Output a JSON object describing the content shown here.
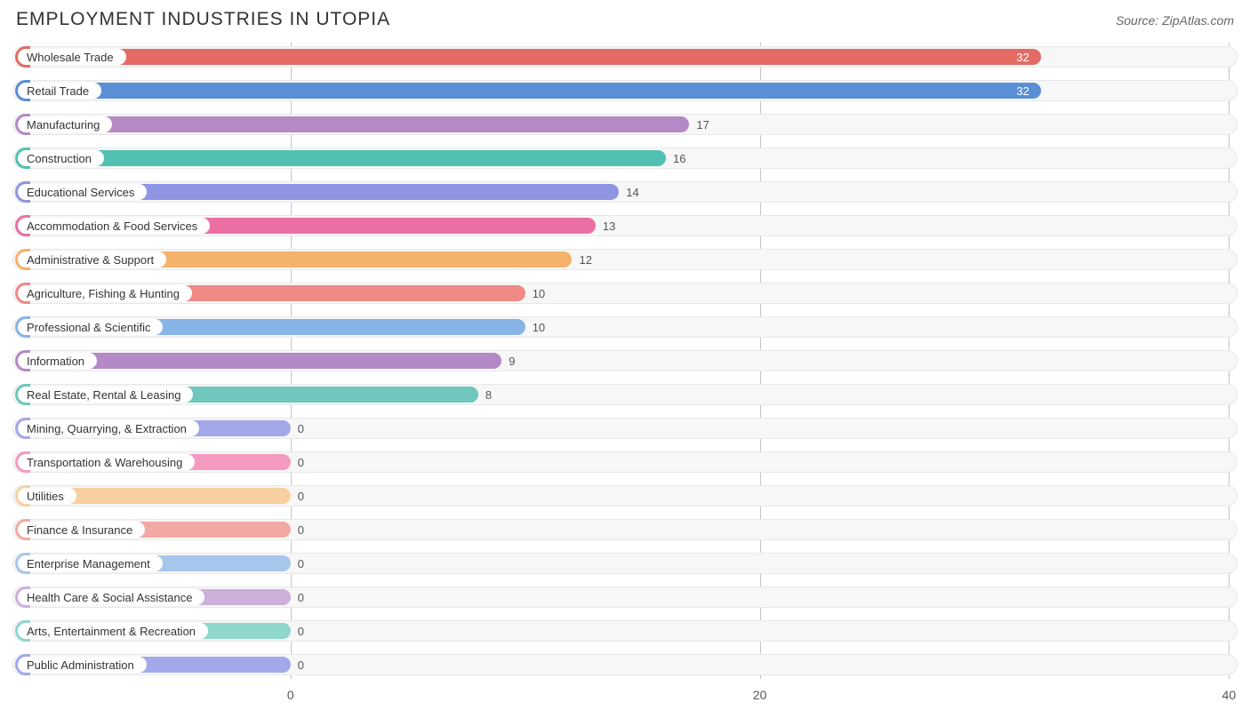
{
  "header": {
    "title": "EMPLOYMENT INDUSTRIES IN UTOPIA",
    "source": "Source: ZipAtlas.com"
  },
  "chart": {
    "type": "bar-horizontal",
    "background_color": "#ffffff",
    "track_color": "#f7f7f7",
    "track_border_color": "#e8e8e8",
    "grid_color": "#c4c4c4",
    "label_fontsize": 13,
    "title_fontsize": 21,
    "value_fontsize": 13,
    "bar_origin_pct": 22.7,
    "x_axis": {
      "ticks": [
        {
          "value": 0,
          "pos_pct": 22.7
        },
        {
          "value": 20,
          "pos_pct": 61.0
        },
        {
          "value": 40,
          "pos_pct": 99.3
        }
      ]
    },
    "value_area_pct": 76.6,
    "max_value": 40,
    "bars": [
      {
        "label": "Wholesale Trade",
        "value": 32,
        "color": "#e36b64",
        "value_inside": true,
        "value_color": "#ffffff"
      },
      {
        "label": "Retail Trade",
        "value": 32,
        "color": "#5a8fd6",
        "value_inside": true,
        "value_color": "#ffffff"
      },
      {
        "label": "Manufacturing",
        "value": 17,
        "color": "#b489c6",
        "value_inside": false,
        "value_color": "#555555"
      },
      {
        "label": "Construction",
        "value": 16,
        "color": "#52c1b4",
        "value_inside": false,
        "value_color": "#555555"
      },
      {
        "label": "Educational Services",
        "value": 14,
        "color": "#8f94e3",
        "value_inside": false,
        "value_color": "#555555"
      },
      {
        "label": "Accommodation & Food Services",
        "value": 13,
        "color": "#ec6fa4",
        "value_inside": false,
        "value_color": "#555555"
      },
      {
        "label": "Administrative & Support",
        "value": 12,
        "color": "#f4b26a",
        "value_inside": false,
        "value_color": "#555555"
      },
      {
        "label": "Agriculture, Fishing & Hunting",
        "value": 10,
        "color": "#ef8a85",
        "value_inside": false,
        "value_color": "#555555"
      },
      {
        "label": "Professional & Scientific",
        "value": 10,
        "color": "#87b4e6",
        "value_inside": false,
        "value_color": "#555555"
      },
      {
        "label": "Information",
        "value": 9,
        "color": "#b489c6",
        "value_inside": false,
        "value_color": "#555555"
      },
      {
        "label": "Real Estate, Rental & Leasing",
        "value": 8,
        "color": "#6fc7bd",
        "value_inside": false,
        "value_color": "#555555"
      },
      {
        "label": "Mining, Quarrying, & Extraction",
        "value": 0,
        "color": "#a3a8ea",
        "value_inside": false,
        "value_color": "#555555"
      },
      {
        "label": "Transportation & Warehousing",
        "value": 0,
        "color": "#f59ac1",
        "value_inside": false,
        "value_color": "#555555"
      },
      {
        "label": "Utilities",
        "value": 0,
        "color": "#f8cfa0",
        "value_inside": false,
        "value_color": "#555555"
      },
      {
        "label": "Finance & Insurance",
        "value": 0,
        "color": "#f2a9a4",
        "value_inside": false,
        "value_color": "#555555"
      },
      {
        "label": "Enterprise Management",
        "value": 0,
        "color": "#a6c6eb",
        "value_inside": false,
        "value_color": "#555555"
      },
      {
        "label": "Health Care & Social Assistance",
        "value": 0,
        "color": "#ccb0da",
        "value_inside": false,
        "value_color": "#555555"
      },
      {
        "label": "Arts, Entertainment & Recreation",
        "value": 0,
        "color": "#8fd6cd",
        "value_inside": false,
        "value_color": "#555555"
      },
      {
        "label": "Public Administration",
        "value": 0,
        "color": "#a3a8ea",
        "value_inside": false,
        "value_color": "#555555"
      }
    ]
  }
}
